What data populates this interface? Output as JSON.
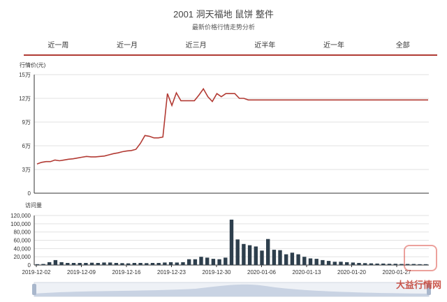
{
  "title": "2001 洞天福地 鼠饼 整件",
  "subtitle": "最新价格行情走势分析",
  "tabs": [
    "近一周",
    "近一月",
    "近三月",
    "近半年",
    "近一年",
    "全部"
  ],
  "colors": {
    "price_line": "#b23a33",
    "bars": "#2e3f4d",
    "grid": "#e2e2e2",
    "axis": "#333333",
    "tab_underline": "#b03a33"
  },
  "watermark": {
    "text": "大益行情网",
    "logo_text": "大益"
  },
  "chart_data": [
    {
      "type": "line",
      "ylabel": "行情价(元)",
      "ylim": [
        0,
        150000
      ],
      "y_ticks": [
        0,
        30000,
        60000,
        90000,
        120000,
        150000
      ],
      "y_tick_labels": [
        "0",
        "3万",
        "6万",
        "9万",
        "12万",
        "15万"
      ],
      "grid": true,
      "series": [
        {
          "values": [
            37000,
            39000,
            40000,
            40000,
            42000,
            41000,
            42000,
            43000,
            43500,
            44500,
            45500,
            46500,
            46000,
            46000,
            46500,
            47000,
            48500,
            50000,
            51000,
            52500,
            53500,
            54000,
            55500,
            63000,
            73000,
            72000,
            70000,
            70000,
            71000,
            126000,
            111000,
            127000,
            117000,
            117000,
            117000,
            117000,
            124000,
            132000,
            122000,
            116000,
            126000,
            122000,
            126000,
            126000,
            126000,
            120000,
            120000,
            118000,
            118000,
            118000,
            118000,
            118000,
            118000,
            118000,
            118000,
            118000,
            118000,
            118000,
            118000,
            118000,
            118000,
            118000,
            118000,
            118000,
            118000,
            118000,
            118000,
            118000,
            118000,
            118000,
            118000,
            118000,
            118000,
            118000,
            118000,
            118000,
            118000,
            118000,
            118000,
            118000,
            118000,
            118000,
            118000,
            118000,
            118000,
            118000,
            118000,
            118000
          ]
        }
      ]
    },
    {
      "type": "bar",
      "ylabel": "访问量",
      "ylim": [
        0,
        120000
      ],
      "y_ticks": [
        0,
        20000,
        40000,
        60000,
        80000,
        100000,
        120000
      ],
      "y_tick_labels": [
        "0",
        "20,000",
        "40,000",
        "60,000",
        "80,000",
        "100,000",
        "120,000"
      ],
      "x_tick_labels": [
        "2019-12-02",
        "2019-12-09",
        "2019-12-16",
        "2019-12-23",
        "2019-12-30",
        "2020-01-06",
        "2020-01-13",
        "2020-01-20",
        "2020-01-27"
      ],
      "grid": true,
      "series": [
        {
          "values": [
            2000,
            2500,
            7000,
            12000,
            7000,
            5000,
            5000,
            5000,
            5000,
            5500,
            5000,
            6000,
            6000,
            5000,
            4500,
            4000,
            5000,
            5000,
            4500,
            5000,
            5000,
            6000,
            7000,
            6000,
            7000,
            14000,
            14000,
            20000,
            18000,
            15000,
            14000,
            18000,
            110000,
            62000,
            51000,
            48000,
            45000,
            35000,
            63000,
            37000,
            36000,
            26000,
            30000,
            26000,
            20000,
            16000,
            15000,
            12000,
            10000,
            8000,
            8000,
            7000,
            6000,
            5000,
            4500,
            4000,
            3500,
            3500,
            3000,
            3000,
            2500,
            2500,
            2500,
            2000,
            2000
          ]
        }
      ]
    }
  ]
}
